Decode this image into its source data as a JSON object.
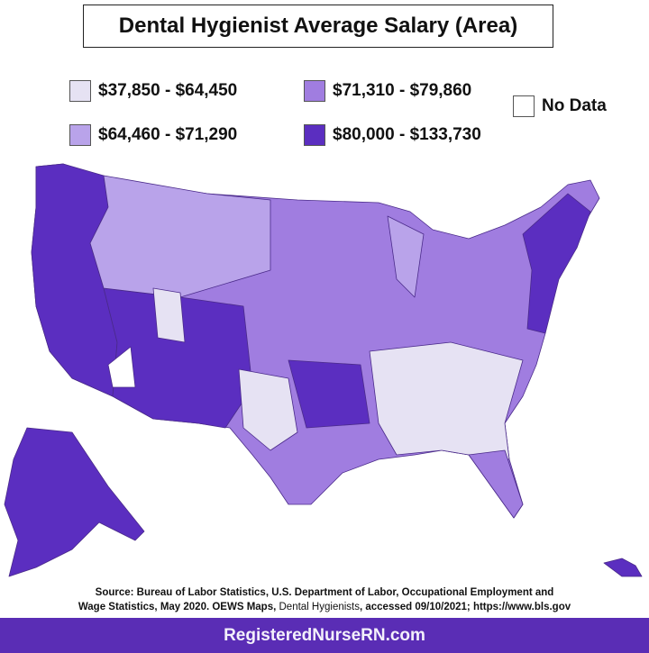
{
  "title": "Dental Hygienist Average Salary (Area)",
  "legend": [
    {
      "label": "$37,850 - $64,450",
      "color": "#e6e2f3"
    },
    {
      "label": "$64,460 - $71,290",
      "color": "#b9a3ea"
    },
    {
      "label": "$71,310 - $79,860",
      "color": "#a07de0"
    },
    {
      "label": "$80,000 - $133,730",
      "color": "#5b2ec0"
    },
    {
      "label": "No Data",
      "color": "#ffffff"
    }
  ],
  "source": {
    "line1": "Source: Bureau of Labor Statistics, U.S. Department of Labor, Occupational Employment and",
    "line2a": "Wage Statistics, May 2020. OEWS Maps,",
    "line2b": "Dental Hygienists",
    "line2c": ", accessed 09/10/2021; https://www.bls.gov"
  },
  "footer": "RegisteredNurseRN.com",
  "chart_data": {
    "type": "choropleth",
    "title": "Dental Hygienist Average Salary (Area)",
    "legend_placement": "top",
    "bins": [
      "$37,850 - $64,450",
      "$64,460 - $71,290",
      "$71,310 - $79,860",
      "$80,000 - $133,730",
      "No Data"
    ],
    "regions": [
      {
        "name": "West Coast (WA, OR, CA)",
        "bin": "$80,000 - $133,730"
      },
      {
        "name": "Nevada",
        "bin": "$80,000 - $133,730"
      },
      {
        "name": "Arizona",
        "bin": "$80,000 - $133,730"
      },
      {
        "name": "Colorado",
        "bin": "$80,000 - $133,730"
      },
      {
        "name": "New Mexico",
        "bin": "$80,000 - $133,730"
      },
      {
        "name": "Alaska",
        "bin": "$80,000 - $133,730"
      },
      {
        "name": "Northeast (NY, NJ, MA, CT, MD)",
        "bin": "$80,000 - $133,730"
      },
      {
        "name": "Great Plains & Midwest",
        "bin": "$71,310 - $79,860"
      },
      {
        "name": "Mountain North (ID, MT, WY)",
        "bin": "$64,460 - $71,290"
      },
      {
        "name": "Southeast",
        "bin": "$37,850 - $64,450"
      },
      {
        "name": "West Texas",
        "bin": "$37,850 - $64,450"
      }
    ]
  }
}
